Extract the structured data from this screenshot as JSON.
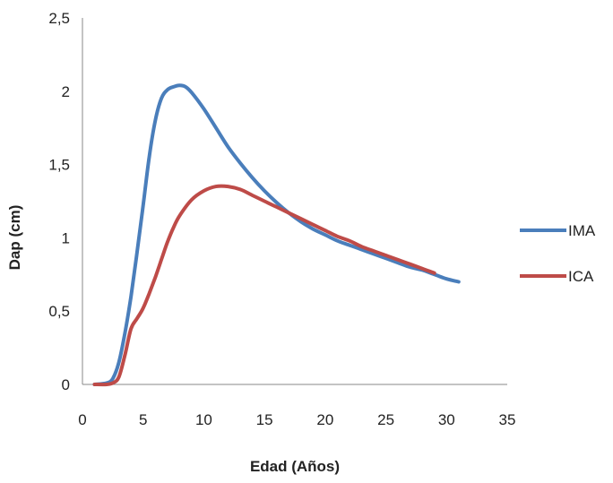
{
  "chart_data": {
    "type": "line",
    "title": "",
    "xlabel": "Edad (Años)",
    "ylabel": "Dap (cm)",
    "xlim": [
      0,
      35
    ],
    "ylim": [
      0,
      2.5
    ],
    "x_ticks": [
      "0",
      "5",
      "10",
      "15",
      "20",
      "25",
      "30",
      "35"
    ],
    "y_ticks": [
      "0",
      "0,5",
      "1",
      "1,5",
      "2",
      "2,5"
    ],
    "grid": false,
    "legend": "right",
    "series": [
      {
        "name": "IMA",
        "color": "#4a7ebb",
        "x": [
          1,
          2,
          2.5,
          3,
          3.5,
          4,
          4.5,
          5,
          5.5,
          6,
          6.5,
          7,
          7.5,
          8,
          8.5,
          9,
          10,
          11,
          12,
          13,
          14,
          15,
          16,
          17,
          18,
          19,
          20,
          21,
          22,
          23,
          24,
          25,
          26,
          27,
          28,
          29,
          30,
          31
        ],
        "values": [
          0,
          0.01,
          0.04,
          0.15,
          0.35,
          0.6,
          0.9,
          1.22,
          1.55,
          1.8,
          1.95,
          2.01,
          2.03,
          2.04,
          2.03,
          1.99,
          1.88,
          1.75,
          1.62,
          1.51,
          1.41,
          1.32,
          1.24,
          1.17,
          1.11,
          1.06,
          1.02,
          0.98,
          0.95,
          0.92,
          0.89,
          0.86,
          0.83,
          0.8,
          0.78,
          0.75,
          0.72,
          0.7
        ]
      },
      {
        "name": "ICA",
        "color": "#be4b48",
        "x": [
          1,
          2,
          2.5,
          3,
          3.5,
          4,
          4.5,
          5,
          5.5,
          6,
          6.5,
          7,
          7.5,
          8,
          9,
          10,
          11,
          12,
          13,
          14,
          15,
          16,
          17,
          18,
          19,
          20,
          21,
          22,
          23,
          24,
          25,
          26,
          27,
          28,
          29
        ],
        "values": [
          0,
          0.0,
          0.01,
          0.05,
          0.2,
          0.38,
          0.45,
          0.52,
          0.62,
          0.73,
          0.85,
          0.97,
          1.07,
          1.15,
          1.26,
          1.32,
          1.35,
          1.35,
          1.33,
          1.29,
          1.25,
          1.21,
          1.17,
          1.13,
          1.09,
          1.05,
          1.01,
          0.98,
          0.94,
          0.91,
          0.88,
          0.85,
          0.82,
          0.79,
          0.76
        ]
      }
    ]
  }
}
